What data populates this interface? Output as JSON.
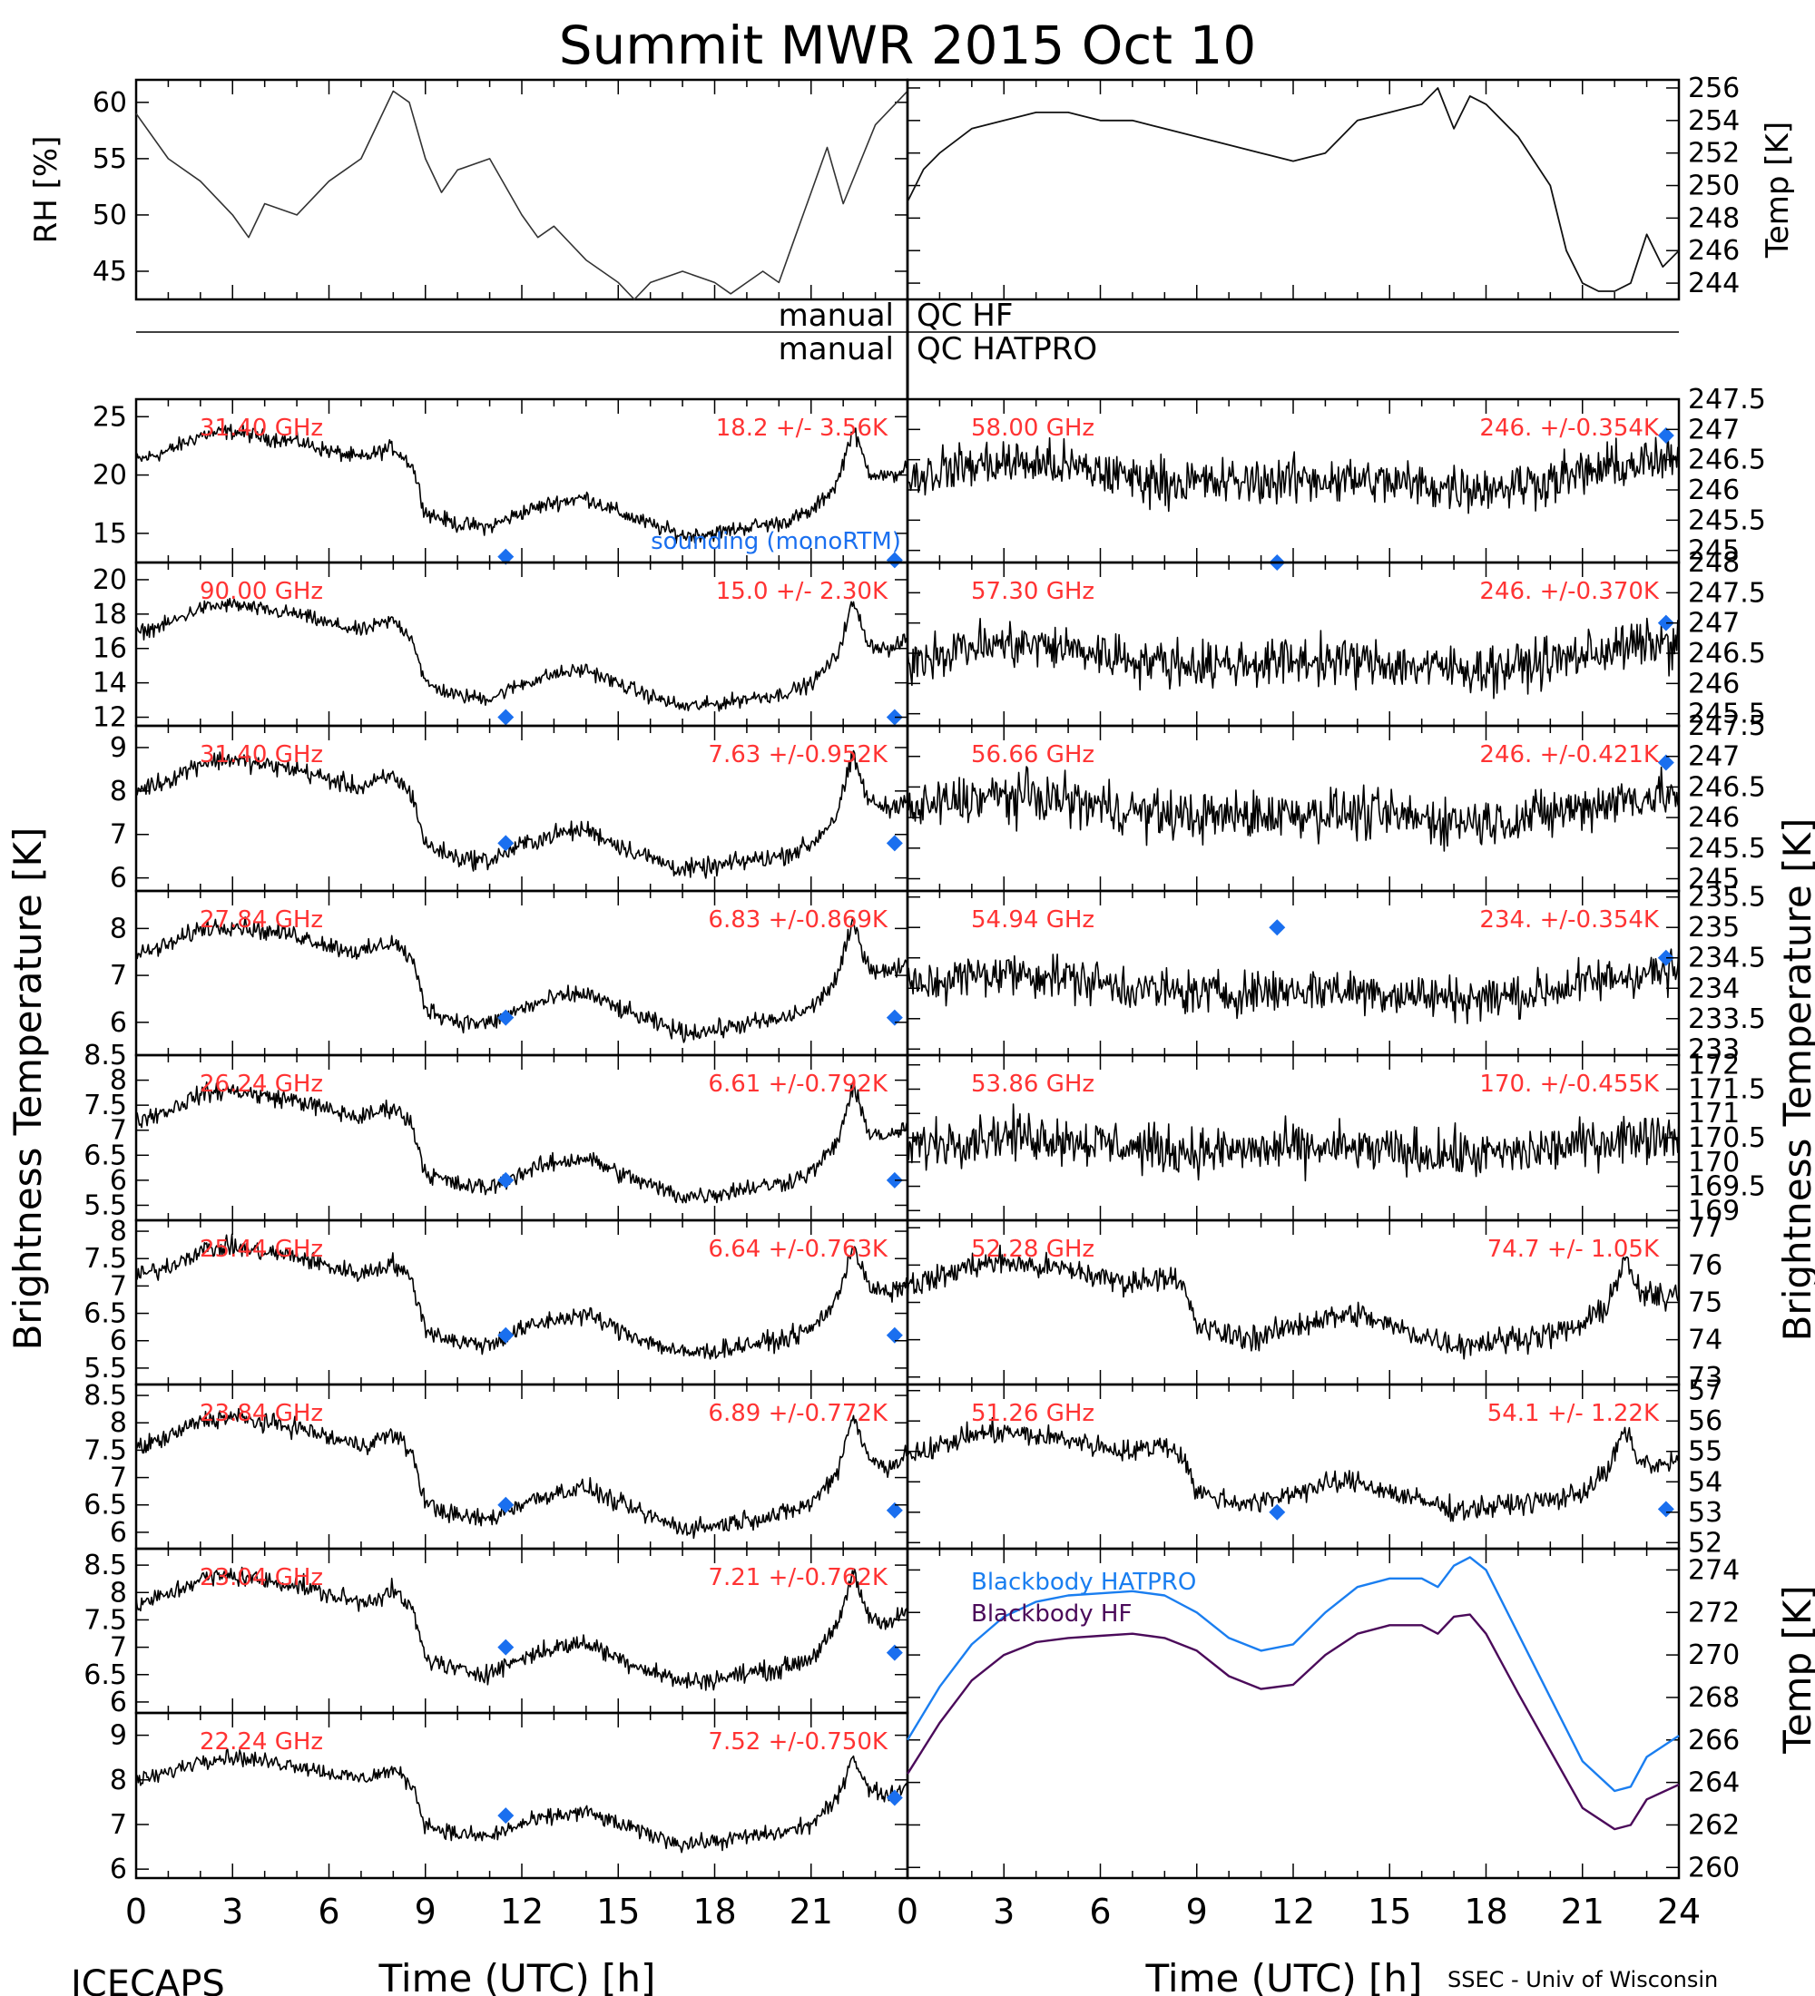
{
  "title": "Summit MWR 2015 Oct 10",
  "footer": {
    "left": "ICECAPS",
    "right": "SSEC - Univ of Wisconsin"
  },
  "qc_labels": {
    "row1_left": "manual",
    "row1_right": "QC HF",
    "row2_left": "manual",
    "row2_right": "QC HATPRO"
  },
  "colors": {
    "annotation": "#ff3333",
    "sounding": "#1a6fef",
    "hatpro": "#1a7ef0",
    "hf": "#4b0a5a",
    "data": "#000000"
  },
  "x_axis": {
    "label": "Time (UTC) [h]",
    "range": [
      0,
      24
    ],
    "ticks": [
      0,
      3,
      6,
      9,
      12,
      15,
      18,
      21
    ],
    "ticks_right": [
      0,
      3,
      6,
      9,
      12,
      15,
      18,
      21,
      24
    ]
  },
  "left_axis_title": "Brightness Temperature [K]",
  "right_axis_title": "Brightness Temperature [K]",
  "bottom_right_axis_title": "Temp [K]",
  "chart_data": [
    {
      "id": "rh",
      "type": "line",
      "ylabel": "RH [%]",
      "ylim": [
        42.5,
        62
      ],
      "yticks": [
        45,
        50,
        55,
        60
      ],
      "series": [
        {
          "x": [
            0,
            1,
            2,
            3,
            3.5,
            4,
            5,
            6,
            6.5,
            7,
            7.5,
            8,
            8.5,
            9,
            9.5,
            10,
            11,
            12,
            12.5,
            13,
            14,
            15,
            15.5,
            16,
            17,
            18,
            18.5,
            19,
            19.5,
            20,
            20.5,
            21,
            21.5,
            22,
            23,
            24
          ],
          "y": [
            59,
            55,
            53,
            50,
            48,
            51,
            50,
            53,
            54,
            55,
            58,
            61,
            60,
            55,
            52,
            54,
            55,
            50,
            48,
            49,
            46,
            44,
            42.5,
            44,
            45,
            44,
            43,
            44,
            45,
            44,
            48,
            52,
            56,
            51,
            58,
            61
          ]
        }
      ]
    },
    {
      "id": "temp",
      "type": "line",
      "ylabel": "Temp [K]",
      "ylim": [
        243,
        256.5
      ],
      "yticks": [
        244,
        246,
        248,
        250,
        252,
        254,
        256
      ],
      "series": [
        {
          "x": [
            0,
            0.5,
            1,
            2,
            3,
            4,
            5,
            6,
            7,
            8,
            9,
            10,
            11,
            12,
            13,
            14,
            15,
            16,
            16.5,
            17,
            17.5,
            18,
            19,
            20,
            20.5,
            21,
            21.5,
            22,
            22.5,
            23,
            23.5,
            24
          ],
          "y": [
            249,
            251,
            252,
            253.5,
            254,
            254.5,
            254.5,
            254,
            254,
            253.5,
            253,
            252.5,
            252,
            251.5,
            252,
            254,
            254.5,
            255,
            256,
            253.5,
            255.5,
            255,
            253,
            250,
            246,
            244,
            243.5,
            243.5,
            244,
            247,
            245,
            246
          ]
        }
      ]
    },
    {
      "id": "hf-31400",
      "side": "left",
      "freq": "31.40 GHz",
      "stat": "18.2 +/-  3.56K",
      "ylim": [
        12.5,
        26.5
      ],
      "yticks": [
        15,
        20,
        25
      ],
      "base": 14.5,
      "amp": 10.5,
      "noise": 0.55,
      "sounding": [
        [
          11.5,
          13
        ],
        [
          23.6,
          12.7
        ]
      ],
      "sounding_label": "sounding (monoRTM)"
    },
    {
      "id": "hf-90000",
      "side": "left",
      "freq": "90.00 GHz",
      "stat": "15.0 +/-  2.30K",
      "ylim": [
        11.5,
        21
      ],
      "yticks": [
        12,
        14,
        16,
        18,
        20
      ],
      "base": 12.4,
      "amp": 7,
      "noise": 0.35,
      "sounding": [
        [
          11.5,
          12
        ],
        [
          23.6,
          12
        ]
      ]
    },
    {
      "id": "hf-31400b",
      "side": "left",
      "freq": "31.40 GHz",
      "stat": "7.63 +/-0.952K",
      "ylim": [
        5.7,
        9.5
      ],
      "yticks": [
        6,
        7,
        8,
        9
      ],
      "base": 6.1,
      "amp": 3,
      "noise": 0.18,
      "sounding": [
        [
          11.5,
          6.8
        ],
        [
          23.6,
          6.8
        ]
      ]
    },
    {
      "id": "hf-27840",
      "side": "left",
      "freq": "27.84 GHz",
      "stat": "6.83 +/-0.869K",
      "ylim": [
        5.3,
        8.8
      ],
      "yticks": [
        6,
        7,
        8
      ],
      "base": 5.7,
      "amp": 2.7,
      "noise": 0.16,
      "sounding": [
        [
          11.5,
          6.1
        ],
        [
          23.6,
          6.1
        ]
      ]
    },
    {
      "id": "hf-26240",
      "side": "left",
      "freq": "26.24 GHz",
      "stat": "6.61 +/-0.792K",
      "ylim": [
        5.2,
        8.5
      ],
      "yticks": [
        5.5,
        6.0,
        6.5,
        7.0,
        7.5,
        8.0,
        8.5
      ],
      "base": 5.6,
      "amp": 2.5,
      "noise": 0.15,
      "sounding": [
        [
          11.5,
          6.0
        ],
        [
          23.6,
          6.0
        ]
      ]
    },
    {
      "id": "hf-25440",
      "side": "left",
      "freq": "25.44 GHz",
      "stat": "6.64 +/-0.763K",
      "ylim": [
        5.2,
        8.2
      ],
      "yticks": [
        5.5,
        6.0,
        6.5,
        7.0,
        7.5,
        8.0
      ],
      "base": 5.7,
      "amp": 2.3,
      "noise": 0.14,
      "sounding": [
        [
          11.5,
          6.1
        ],
        [
          23.6,
          6.1
        ]
      ]
    },
    {
      "id": "hf-23840",
      "side": "left",
      "freq": "23.84 GHz",
      "stat": "6.89 +/-0.772K",
      "ylim": [
        5.7,
        8.7
      ],
      "yticks": [
        6.0,
        6.5,
        7.0,
        7.5,
        8.0,
        8.5
      ],
      "base": 6.0,
      "amp": 2.4,
      "noise": 0.14,
      "sounding": [
        [
          11.5,
          6.5
        ],
        [
          23.6,
          6.4
        ]
      ]
    },
    {
      "id": "hf-23040",
      "side": "left",
      "freq": "23.04 GHz",
      "stat": "7.21 +/-0.762K",
      "ylim": [
        5.8,
        8.8
      ],
      "yticks": [
        6.0,
        6.5,
        7.0,
        7.5,
        8.0,
        8.5
      ],
      "base": 6.3,
      "amp": 2.3,
      "noise": 0.14,
      "sounding": [
        [
          11.5,
          7.0
        ],
        [
          23.6,
          6.9
        ]
      ]
    },
    {
      "id": "hf-22240",
      "side": "left",
      "freq": "22.24 GHz",
      "stat": "7.52 +/-0.750K",
      "ylim": [
        5.8,
        9.5
      ],
      "yticks": [
        6,
        7,
        8,
        9
      ],
      "base": 6.5,
      "amp": 2.3,
      "noise": 0.15,
      "sounding": [
        [
          11.5,
          7.2
        ],
        [
          23.6,
          7.6
        ]
      ]
    },
    {
      "id": "hp-58000",
      "side": "right",
      "freq": "58.00 GHz",
      "stat": "246. +/-0.354K",
      "ylim": [
        244.8,
        247.5
      ],
      "yticks": [
        245.0,
        245.5,
        246.0,
        246.5,
        247.0,
        247.5
      ],
      "flat": 246.2,
      "noise": 0.32,
      "sounding": [
        [
          11.5,
          244.8
        ],
        [
          23.6,
          246.9
        ]
      ]
    },
    {
      "id": "hp-57300",
      "side": "right",
      "freq": "57.30 GHz",
      "stat": "246. +/-0.370K",
      "ylim": [
        245.3,
        248
      ],
      "yticks": [
        245.5,
        246.0,
        246.5,
        247.0,
        247.5,
        248.0
      ],
      "flat": 246.4,
      "noise": 0.32,
      "sounding": [
        [
          23.6,
          247.0
        ]
      ]
    },
    {
      "id": "hp-56660",
      "side": "right",
      "freq": "56.66 GHz",
      "stat": "246. +/-0.421K",
      "ylim": [
        244.8,
        247.5
      ],
      "yticks": [
        245.0,
        245.5,
        246.0,
        246.5,
        247.0,
        247.5
      ],
      "flat": 246.1,
      "noise": 0.33,
      "sounding": [
        [
          23.6,
          246.9
        ]
      ]
    },
    {
      "id": "hp-54940",
      "side": "right",
      "freq": "54.94 GHz",
      "stat": "234. +/-0.354K",
      "ylim": [
        232.9,
        235.6
      ],
      "yticks": [
        233.0,
        233.5,
        234.0,
        234.5,
        235.0,
        235.5
      ],
      "flat": 234.0,
      "noise": 0.3,
      "sounding": [
        [
          11.5,
          235.0
        ],
        [
          23.6,
          234.5
        ]
      ]
    },
    {
      "id": "hp-53860",
      "side": "right",
      "freq": "53.86 GHz",
      "stat": "170. +/-0.455K",
      "ylim": [
        168.8,
        172.2
      ],
      "yticks": [
        169.0,
        169.5,
        170.0,
        170.5,
        171.0,
        171.5,
        172.0
      ],
      "flat": 170.3,
      "noise": 0.4,
      "sounding": []
    },
    {
      "id": "hp-52280",
      "side": "right",
      "freq": "52.28 GHz",
      "stat": "74.7 +/- 1.05K",
      "ylim": [
        72.8,
        77.2
      ],
      "yticks": [
        73,
        74,
        75,
        76,
        77
      ],
      "base": 73.8,
      "amp": 2.6,
      "noise": 0.28,
      "sounding": []
    },
    {
      "id": "hp-51260",
      "side": "right",
      "freq": "51.26 GHz",
      "stat": "54.1 +/- 1.22K",
      "ylim": [
        51.8,
        57.2
      ],
      "yticks": [
        52,
        53,
        54,
        55,
        56,
        57
      ],
      "base": 53.0,
      "amp": 3.0,
      "noise": 0.3,
      "sounding": [
        [
          11.5,
          53.0
        ],
        [
          23.6,
          53.1
        ]
      ]
    },
    {
      "id": "blackbody",
      "type": "line",
      "side": "right",
      "ylim": [
        259.5,
        275
      ],
      "yticks": [
        260,
        262,
        264,
        266,
        268,
        270,
        272,
        274
      ],
      "series": [
        {
          "name": "Blackbody HATPRO",
          "x": [
            0,
            1,
            2,
            3,
            4,
            5,
            6,
            7,
            8,
            9,
            10,
            11,
            12,
            13,
            14,
            15,
            16,
            16.5,
            17,
            17.5,
            18,
            19,
            20,
            21,
            22,
            22.5,
            23,
            24
          ],
          "y": [
            266,
            268.5,
            270.5,
            271.8,
            272.5,
            272.8,
            272.9,
            273,
            272.8,
            272,
            270.8,
            270.2,
            270.5,
            272,
            273.2,
            273.6,
            273.6,
            273.2,
            274.2,
            274.6,
            274,
            271,
            268,
            265,
            263.6,
            263.8,
            265.2,
            266.2
          ]
        },
        {
          "name": "Blackbody HF",
          "x": [
            0,
            1,
            2,
            3,
            4,
            5,
            6,
            7,
            8,
            9,
            10,
            11,
            12,
            13,
            14,
            15,
            16,
            16.5,
            17,
            17.5,
            18,
            19,
            20,
            21,
            22,
            22.5,
            23,
            24
          ],
          "y": [
            264.4,
            266.8,
            268.8,
            270,
            270.6,
            270.8,
            270.9,
            271,
            270.8,
            270.2,
            269,
            268.4,
            268.6,
            270,
            271,
            271.4,
            271.4,
            271,
            271.8,
            271.9,
            271,
            268.2,
            265.5,
            262.8,
            261.8,
            262.0,
            263.2,
            263.9
          ]
        }
      ]
    }
  ]
}
